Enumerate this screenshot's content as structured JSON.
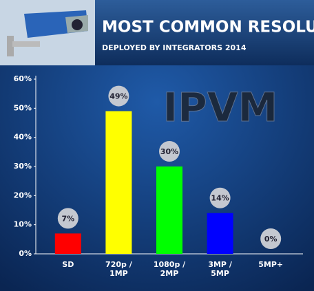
{
  "chart_data": {
    "type": "bar",
    "title": "MOST COMMON RESOLUTIONS",
    "subtitle": "DEPLOYED BY INTEGRATORS 2014",
    "watermark": "IPVM",
    "categories": [
      [
        "SD"
      ],
      [
        "720p /",
        "1MP"
      ],
      [
        "1080p /",
        "2MP"
      ],
      [
        "3MP /",
        "5MP"
      ],
      [
        "5MP+"
      ]
    ],
    "values": [
      7,
      49,
      30,
      14,
      0
    ],
    "value_labels": [
      "7%",
      "49%",
      "30%",
      "14%",
      "0%"
    ],
    "colors": [
      "#ff0000",
      "#ffff00",
      "#00ff00",
      "#0000ff",
      "#888888"
    ],
    "ylim": [
      0,
      60
    ],
    "yticks": [
      {
        "value": 0,
        "label": "0%"
      },
      {
        "value": 10,
        "label": "10%"
      },
      {
        "value": 20,
        "label": "20%"
      },
      {
        "value": 30,
        "label": "30%"
      },
      {
        "value": 40,
        "label": "40%"
      },
      {
        "value": 50,
        "label": "50%"
      },
      {
        "value": 60,
        "label": "60%"
      }
    ]
  }
}
